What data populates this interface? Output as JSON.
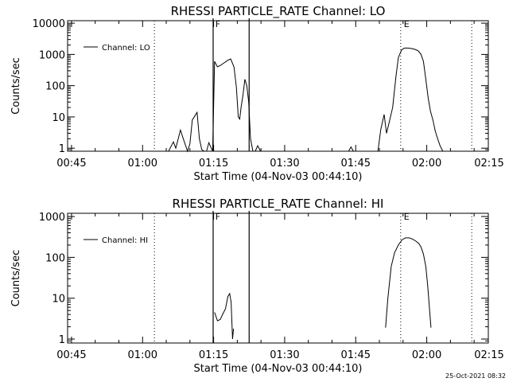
{
  "chart_data": [
    {
      "type": "line",
      "title": "RHESSI PARTICLE_RATE Channel: LO",
      "xlabel": "Start Time (04-Nov-03 00:44:10)",
      "ylabel": "Counts/sec",
      "yscale": "log",
      "ylim": [
        0.8,
        12000
      ],
      "xlim": [
        44.17,
        133
      ],
      "x_units": "minutes after 00:00 UT",
      "x_ticks": [
        45,
        60,
        75,
        90,
        105,
        120,
        135
      ],
      "x_tick_labels": [
        "00:45",
        "01:00",
        "01:15",
        "01:30",
        "01:45",
        "02:00",
        "02:15"
      ],
      "y_ticks": [
        1,
        10,
        100,
        1000,
        10000
      ],
      "y_tick_labels": [
        "1",
        "10",
        "100",
        "1000",
        "10000"
      ],
      "legend": {
        "label": "Channel: LO",
        "placement": "top-left"
      },
      "solid_vlines": [
        74.9,
        82.5
      ],
      "dotted_vlines": [
        62.5,
        114.5,
        129.5
      ],
      "markers": [
        {
          "label": "F",
          "x": 75.2
        },
        {
          "label": "E",
          "x": 115.0
        }
      ],
      "series": [
        {
          "name": "Channel: LO",
          "segments": [
            {
              "x": [
                65.5,
                66.5,
                67.0,
                68.0,
                68.5,
                69.5,
                70.0,
                70.5,
                71.5,
                72.0,
                72.5,
                73.0,
                73.5,
                74.0,
                74.8,
                75.2,
                75.8,
                76.5,
                77.3,
                78.0,
                78.6,
                79.3,
                79.8,
                80.2,
                80.5,
                80.8,
                81.2,
                81.6,
                82.0,
                82.4,
                82.8,
                83.3,
                83.8,
                84.3,
                84.9,
                85.5,
                86.5
              ],
              "y": [
                0.8,
                1.6,
                1.0,
                3.8,
                2.2,
                0.8,
                1.4,
                8,
                14,
                2.0,
                0.9,
                0.8,
                0.8,
                1.5,
                0.8,
                600,
                400,
                450,
                550,
                650,
                720,
                400,
                90,
                10,
                8.5,
                20,
                50,
                160,
                100,
                30,
                2.0,
                0.8,
                0.8,
                1.2,
                0.8,
                0.8,
                0.8
              ]
            },
            {
              "x": [
                103.5,
                104.0,
                104.5
              ],
              "y": [
                0.8,
                1.1,
                0.8
              ]
            },
            {
              "x": [
                109.7,
                110.3,
                111.0,
                111.5,
                112.0,
                112.8,
                113.5,
                114.0,
                114.7,
                115.3,
                116.0,
                116.7,
                117.5,
                118.2,
                118.8,
                119.3,
                119.8,
                120.3,
                120.8,
                121.3,
                121.8,
                122.3,
                122.8,
                123.4
              ],
              "y": [
                0.8,
                4.0,
                12,
                3.0,
                6.0,
                20,
                200,
                800,
                1400,
                1600,
                1600,
                1550,
                1450,
                1300,
                1000,
                600,
                160,
                40,
                15,
                8,
                3.5,
                2.0,
                1.2,
                0.8
              ]
            }
          ]
        }
      ]
    },
    {
      "type": "line",
      "title": "RHESSI PARTICLE_RATE Channel: HI",
      "xlabel": "Start Time (04-Nov-03 00:44:10)",
      "ylabel": "Counts/sec",
      "yscale": "log",
      "ylim": [
        0.8,
        1200
      ],
      "xlim": [
        44.17,
        133
      ],
      "x_units": "minutes after 00:00 UT",
      "x_ticks": [
        45,
        60,
        75,
        90,
        105,
        120,
        135
      ],
      "x_tick_labels": [
        "00:45",
        "01:00",
        "01:15",
        "01:30",
        "01:45",
        "02:00",
        "02:15"
      ],
      "y_ticks": [
        1,
        10,
        100,
        1000
      ],
      "y_tick_labels": [
        "1",
        "10",
        "100",
        "1000"
      ],
      "legend": {
        "label": "Channel: HI",
        "placement": "top-left"
      },
      "solid_vlines": [
        74.9,
        82.5
      ],
      "dotted_vlines": [
        62.5,
        114.5,
        129.5
      ],
      "markers": [
        {
          "label": "F",
          "x": 75.2
        },
        {
          "label": "E",
          "x": 115.0
        }
      ],
      "series": [
        {
          "name": "Channel: HI",
          "segments": [
            {
              "x": [
                75.2,
                75.8,
                76.4,
                76.9,
                77.5,
                78.0,
                78.4,
                78.7,
                79.0,
                79.2
              ],
              "y": [
                4.5,
                2.8,
                3.0,
                4.0,
                5.5,
                11,
                13,
                8,
                1.0,
                1.8
              ]
            },
            {
              "x": [
                111.3,
                111.8,
                112.5,
                113.2,
                114.0,
                114.8,
                115.5,
                116.3,
                117.0,
                117.7,
                118.3,
                118.8,
                119.3,
                119.8,
                120.2,
                120.6,
                120.9
              ],
              "y": [
                1.9,
                10,
                60,
                130,
                200,
                270,
                300,
                300,
                280,
                250,
                220,
                180,
                120,
                60,
                20,
                5,
                1.9
              ]
            }
          ]
        }
      ]
    }
  ],
  "footer": {
    "date_stamp": "25-Oct-2021 08:32"
  }
}
